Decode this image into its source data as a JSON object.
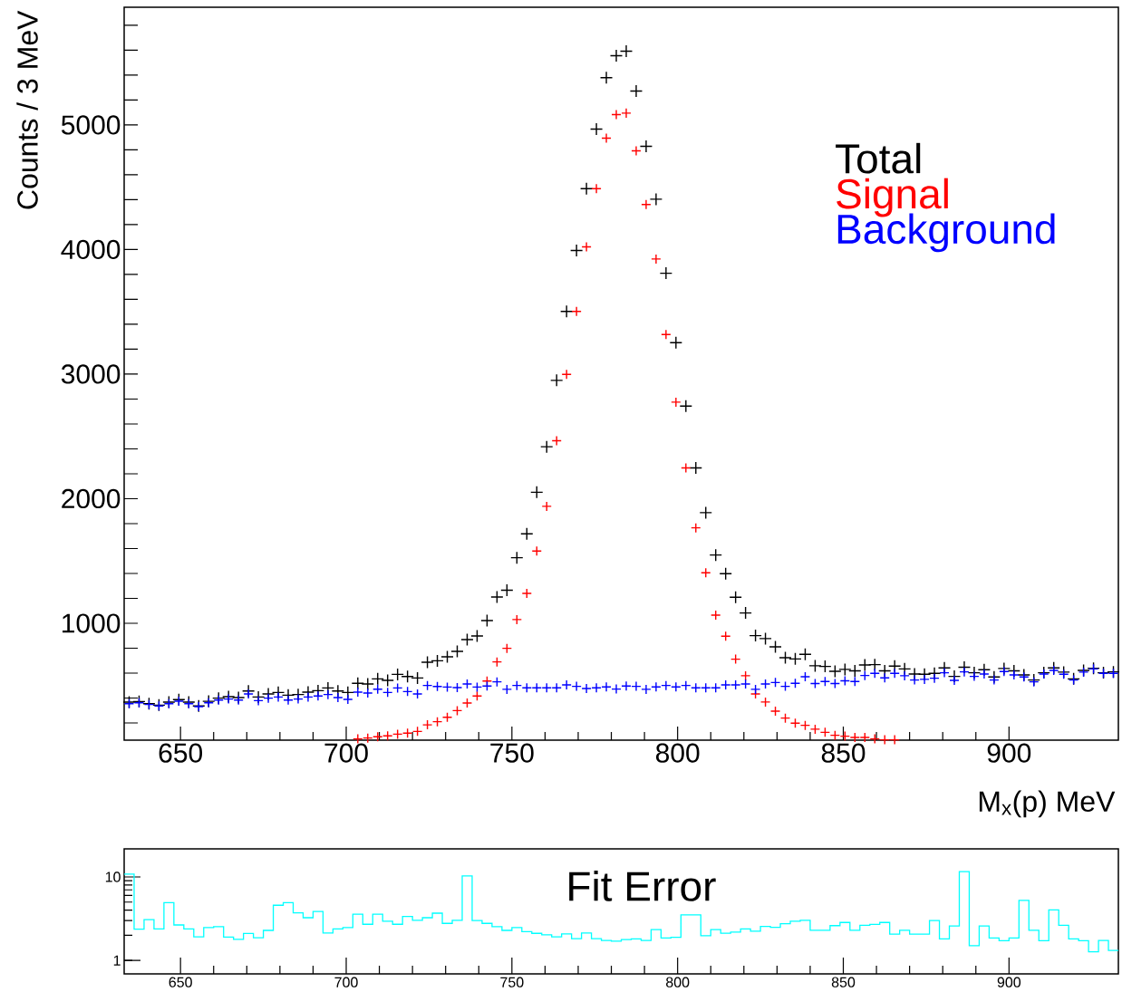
{
  "chart_data": [
    {
      "type": "scatter",
      "xlabel": "M$_{x}$(p) MeV",
      "ylabel": "Counts / 3 MeV",
      "marker": "cross",
      "legend": "top right",
      "xlim": [
        633,
        933
      ],
      "ylim": [
        62,
        5945
      ],
      "xticks": [
        650,
        700,
        750,
        800,
        850,
        900
      ],
      "yticks": [
        {
          "value": 200,
          "label": null
        },
        {
          "value": 400,
          "label": null
        },
        {
          "value": 600,
          "label": null
        },
        {
          "value": 800,
          "label": null
        },
        1000,
        {
          "value": 1200,
          "label": null
        },
        {
          "value": 1400,
          "label": null
        },
        {
          "value": 1600,
          "label": null
        },
        {
          "value": 1800,
          "label": null
        },
        2000,
        {
          "value": 2200,
          "label": null
        },
        {
          "value": 2400,
          "label": null
        },
        {
          "value": 2600,
          "label": null
        },
        {
          "value": 2800,
          "label": null
        },
        3000,
        {
          "value": 3200,
          "label": null
        },
        {
          "value": 3400,
          "label": null
        },
        {
          "value": 3600,
          "label": null
        },
        {
          "value": 3800,
          "label": null
        },
        4000,
        {
          "value": 4200,
          "label": null
        },
        {
          "value": 4400,
          "label": null
        },
        {
          "value": 4600,
          "label": null
        },
        {
          "value": 4800,
          "label": null
        },
        5000,
        {
          "value": 5200,
          "label": null
        },
        {
          "value": 5400,
          "label": null
        },
        {
          "value": 5600,
          "label": null
        },
        {
          "value": 5800,
          "label": null
        }
      ],
      "x": [
        634.5,
        637.5,
        640.5,
        643.5,
        646.5,
        649.5,
        652.5,
        655.5,
        658.5,
        661.5,
        664.5,
        667.5,
        670.5,
        673.5,
        676.5,
        679.5,
        682.5,
        685.5,
        688.5,
        691.5,
        694.5,
        697.5,
        700.5,
        703.5,
        706.5,
        709.5,
        712.5,
        715.5,
        718.5,
        721.5,
        724.5,
        727.5,
        730.5,
        733.5,
        736.5,
        739.5,
        742.5,
        745.5,
        748.5,
        751.5,
        754.5,
        757.5,
        760.5,
        763.5,
        766.5,
        769.5,
        772.5,
        775.5,
        778.5,
        781.5,
        784.5,
        787.5,
        790.5,
        793.5,
        796.5,
        799.5,
        802.5,
        805.5,
        808.5,
        811.5,
        814.5,
        817.5,
        820.5,
        823.5,
        826.5,
        829.5,
        832.5,
        835.5,
        838.5,
        841.5,
        844.5,
        847.5,
        850.5,
        853.5,
        856.5,
        859.5,
        862.5,
        865.5,
        868.5,
        871.5,
        874.5,
        877.5,
        880.5,
        883.5,
        886.5,
        889.5,
        892.5,
        895.5,
        898.5,
        901.5,
        904.5,
        907.5,
        910.5,
        913.5,
        916.5,
        919.5,
        922.5,
        925.5,
        928.5,
        931.5
      ],
      "series": [
        {
          "name": "Total",
          "color": "#000000",
          "values": [
            367,
            372,
            355,
            343,
            367,
            387,
            367,
            336,
            374,
            399,
            411,
            404,
            457,
            408,
            433,
            445,
            423,
            428,
            447,
            459,
            481,
            457,
            445,
            518,
            513,
            554,
            542,
            590,
            573,
            561,
            687,
            699,
            731,
            775,
            869,
            898,
            1022,
            1211,
            1265,
            1526,
            1718,
            2052,
            2417,
            2950,
            3503,
            3992,
            4489,
            4967,
            5379,
            5556,
            5592,
            5272,
            4829,
            4404,
            3810,
            3253,
            2744,
            2247,
            1888,
            1548,
            1398,
            1209,
            1083,
            901,
            877,
            811,
            724,
            714,
            751,
            659,
            654,
            615,
            630,
            618,
            666,
            668,
            618,
            656,
            634,
            593,
            591,
            598,
            642,
            574,
            647,
            603,
            627,
            569,
            637,
            618,
            586,
            545,
            603,
            642,
            608,
            554,
            622,
            639,
            603,
            610
          ]
        },
        {
          "name": "Signal",
          "color": "#ff0000",
          "values": [
            null,
            null,
            null,
            null,
            null,
            null,
            null,
            null,
            null,
            null,
            null,
            null,
            null,
            null,
            null,
            null,
            null,
            null,
            null,
            null,
            null,
            null,
            null,
            72,
            79,
            89,
            96,
            110,
            118,
            132,
            185,
            210,
            246,
            299,
            360,
            416,
            537,
            690,
            799,
            1030,
            1240,
            1580,
            1939,
            2465,
            2998,
            3503,
            4021,
            4489,
            4894,
            5083,
            5095,
            4792,
            4361,
            3924,
            3318,
            2775,
            2247,
            1766,
            1405,
            1066,
            896,
            712,
            579,
            433,
            368,
            295,
            239,
            198,
            181,
            150,
            125,
            101,
            94,
            84,
            84,
            72,
            65,
            65,
            null,
            null,
            null,
            null,
            null,
            null,
            null,
            null,
            null,
            null,
            null,
            null,
            null,
            null,
            null,
            null,
            null,
            null,
            null,
            null,
            null,
            null
          ]
        },
        {
          "name": "Background",
          "color": "#0000ff",
          "values": [
            355,
            362,
            348,
            336,
            355,
            375,
            355,
            331,
            362,
            384,
            392,
            384,
            433,
            379,
            399,
            408,
            384,
            392,
            408,
            416,
            428,
            404,
            389,
            447,
            440,
            471,
            445,
            481,
            452,
            433,
            501,
            493,
            488,
            484,
            513,
            488,
            496,
            530,
            470,
            501,
            482,
            482,
            482,
            482,
            506,
            494,
            477,
            482,
            489,
            472,
            496,
            494,
            470,
            489,
            501,
            489,
            501,
            482,
            482,
            482,
            506,
            506,
            513,
            470,
            513,
            525,
            494,
            518,
            571,
            516,
            533,
            516,
            538,
            533,
            581,
            598,
            562,
            598,
            579,
            545,
            550,
            559,
            603,
            542,
            610,
            574,
            593,
            545,
            613,
            586,
            569,
            530,
            593,
            622,
            591,
            545,
            608,
            634,
            598,
            598
          ]
        }
      ]
    },
    {
      "type": "histogram",
      "title": "Fit Error",
      "log": "y",
      "color": "#00ffff",
      "xlim": [
        633,
        933
      ],
      "ylim": [
        0.69,
        21.7
      ],
      "xticks": [
        650,
        700,
        750,
        800,
        850,
        900
      ],
      "yticks": [
        1,
        10
      ],
      "bins": [
        633,
        636,
        639,
        642,
        645,
        648,
        651,
        654,
        657,
        660,
        663,
        666,
        669,
        672,
        675,
        678,
        681,
        684,
        687,
        690,
        693,
        696,
        699,
        702,
        705,
        708,
        711,
        714,
        717,
        720,
        723,
        726,
        729,
        732,
        735,
        738,
        741,
        744,
        747,
        750,
        753,
        756,
        759,
        762,
        765,
        768,
        771,
        774,
        777,
        780,
        783,
        786,
        789,
        792,
        795,
        798,
        801,
        804,
        807,
        810,
        813,
        816,
        819,
        822,
        825,
        828,
        831,
        834,
        837,
        840,
        843,
        846,
        849,
        852,
        855,
        858,
        861,
        864,
        867,
        870,
        873,
        876,
        879,
        882,
        885,
        888,
        891,
        894,
        897,
        900,
        903,
        906,
        909,
        912,
        915,
        918,
        921,
        924,
        927,
        930,
        933
      ],
      "values": [
        10.8,
        2.37,
        3.08,
        2.39,
        4.91,
        2.66,
        2.39,
        1.92,
        2.48,
        2.54,
        1.9,
        1.79,
        2.1,
        1.87,
        2.29,
        4.58,
        4.91,
        3.71,
        3.25,
        3.85,
        2.13,
        2.39,
        2.48,
        3.58,
        2.71,
        3.58,
        2.95,
        2.71,
        3.37,
        3.03,
        3.25,
        3.68,
        2.78,
        3.03,
        10.3,
        3.01,
        2.78,
        2.54,
        2.29,
        2.48,
        2.21,
        2.11,
        2.03,
        1.92,
        2.08,
        1.82,
        2.13,
        1.82,
        1.73,
        1.7,
        1.78,
        1.81,
        1.73,
        2.34,
        1.86,
        1.89,
        3.52,
        3.52,
        1.98,
        2.34,
        2.12,
        2.18,
        2.38,
        2.24,
        2.56,
        2.49,
        2.75,
        2.95,
        3.03,
        2.3,
        2.3,
        2.61,
        2.85,
        2.3,
        2.63,
        2.7,
        2.85,
        2.07,
        2.3,
        2.07,
        2.07,
        3.0,
        1.81,
        2.58,
        11.6,
        1.5,
        2.58,
        1.86,
        1.72,
        1.86,
        5.24,
        2.3,
        1.72,
        4.03,
        2.63,
        1.81,
        1.72,
        1.27,
        1.73,
        1.32
      ]
    }
  ]
}
